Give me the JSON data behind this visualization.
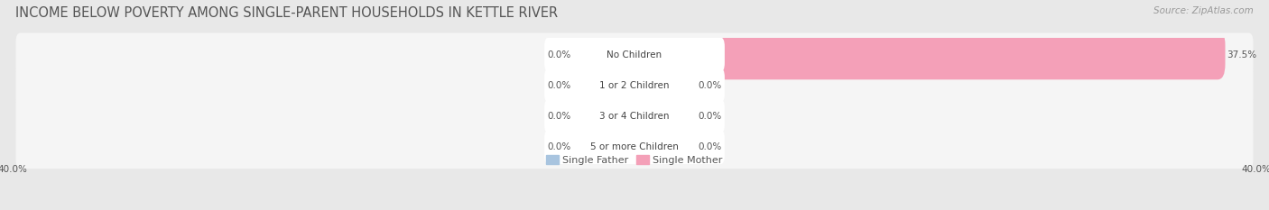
{
  "title": "INCOME BELOW POVERTY AMONG SINGLE-PARENT HOUSEHOLDS IN KETTLE RIVER",
  "source": "Source: ZipAtlas.com",
  "categories": [
    "No Children",
    "1 or 2 Children",
    "3 or 4 Children",
    "5 or more Children"
  ],
  "father_values": [
    0.0,
    0.0,
    0.0,
    0.0
  ],
  "mother_values": [
    37.5,
    0.0,
    0.0,
    0.0
  ],
  "father_color": "#a8c4df",
  "mother_color": "#f4a0b8",
  "xlim": [
    -40,
    40
  ],
  "background_color": "#e8e8e8",
  "row_bg_color": "#f0f0f0",
  "title_fontsize": 10.5,
  "source_fontsize": 7.5,
  "label_fontsize": 7.5,
  "category_fontsize": 7.5,
  "legend_fontsize": 8,
  "bar_stub": 3.5
}
